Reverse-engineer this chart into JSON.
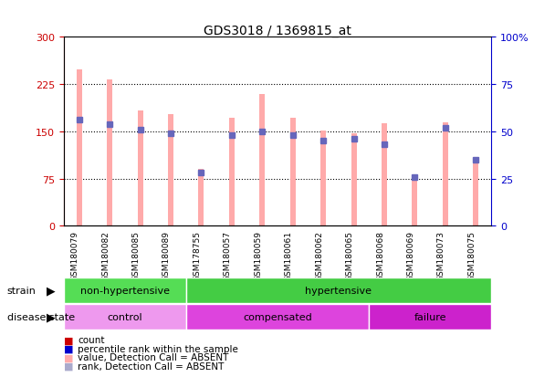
{
  "title": "GDS3018 / 1369815_at",
  "samples": [
    "GSM180079",
    "GSM180082",
    "GSM180085",
    "GSM180089",
    "GSM178755",
    "GSM180057",
    "GSM180059",
    "GSM180061",
    "GSM180062",
    "GSM180065",
    "GSM180068",
    "GSM180069",
    "GSM180073",
    "GSM180075"
  ],
  "values": [
    248,
    232,
    183,
    178,
    90,
    172,
    210,
    172,
    152,
    147,
    163,
    77,
    165,
    105
  ],
  "ranks_pct": [
    56,
    54,
    51,
    49,
    28,
    48,
    50,
    48,
    45,
    46,
    43,
    26,
    52,
    35
  ],
  "ylim_left": [
    0,
    300
  ],
  "ylim_right": [
    0,
    100
  ],
  "yticks_left": [
    0,
    75,
    150,
    225,
    300
  ],
  "yticks_right": [
    0,
    25,
    50,
    75,
    100
  ],
  "strain_groups": [
    {
      "label": "non-hypertensive",
      "start": 0,
      "end": 4,
      "color": "#55dd55"
    },
    {
      "label": "hypertensive",
      "start": 4,
      "end": 14,
      "color": "#44cc44"
    }
  ],
  "disease_groups": [
    {
      "label": "control",
      "start": 0,
      "end": 4,
      "color": "#ee99ee"
    },
    {
      "label": "compensated",
      "start": 4,
      "end": 10,
      "color": "#dd44dd"
    },
    {
      "label": "failure",
      "start": 10,
      "end": 14,
      "color": "#cc22cc"
    }
  ],
  "bar_color": "#ffaaaa",
  "rank_color": "#aaaacc",
  "dot_color": "#6666bb",
  "left_axis_color": "#cc0000",
  "right_axis_color": "#0000cc",
  "background_labels": "#bbbbbb",
  "legend_colors": [
    "#cc0000",
    "#0000cc",
    "#ffaaaa",
    "#aaaacc"
  ],
  "legend_labels": [
    "count",
    "percentile rank within the sample",
    "value, Detection Call = ABSENT",
    "rank, Detection Call = ABSENT"
  ]
}
